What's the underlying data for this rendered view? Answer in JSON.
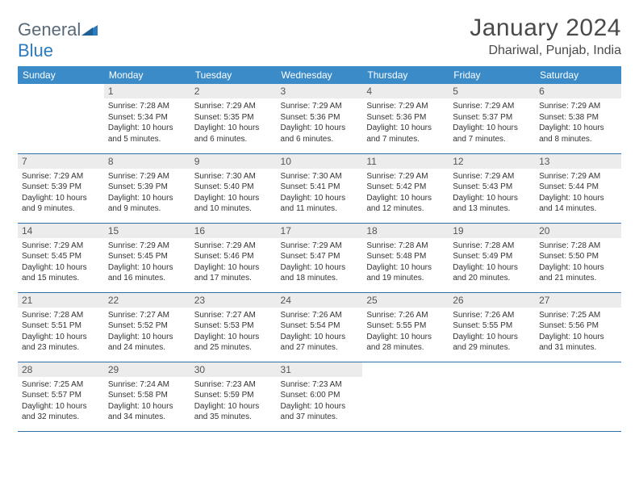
{
  "brand": {
    "part1": "General",
    "part2": "Blue"
  },
  "title": "January 2024",
  "location": "Dhariwal, Punjab, India",
  "colors": {
    "header_bg": "#3b8bc9",
    "header_text": "#ffffff",
    "daynum_bg": "#ececec",
    "row_border": "#2f6fa3",
    "logo_gray": "#5a6a78",
    "logo_blue": "#2a7bbf"
  },
  "weekdays": [
    "Sunday",
    "Monday",
    "Tuesday",
    "Wednesday",
    "Thursday",
    "Friday",
    "Saturday"
  ],
  "first_weekday_index": 1,
  "days_in_month": 31,
  "days": {
    "1": {
      "sunrise": "7:28 AM",
      "sunset": "5:34 PM",
      "daylight": "10 hours and 5 minutes."
    },
    "2": {
      "sunrise": "7:29 AM",
      "sunset": "5:35 PM",
      "daylight": "10 hours and 6 minutes."
    },
    "3": {
      "sunrise": "7:29 AM",
      "sunset": "5:36 PM",
      "daylight": "10 hours and 6 minutes."
    },
    "4": {
      "sunrise": "7:29 AM",
      "sunset": "5:36 PM",
      "daylight": "10 hours and 7 minutes."
    },
    "5": {
      "sunrise": "7:29 AM",
      "sunset": "5:37 PM",
      "daylight": "10 hours and 7 minutes."
    },
    "6": {
      "sunrise": "7:29 AM",
      "sunset": "5:38 PM",
      "daylight": "10 hours and 8 minutes."
    },
    "7": {
      "sunrise": "7:29 AM",
      "sunset": "5:39 PM",
      "daylight": "10 hours and 9 minutes."
    },
    "8": {
      "sunrise": "7:29 AM",
      "sunset": "5:39 PM",
      "daylight": "10 hours and 9 minutes."
    },
    "9": {
      "sunrise": "7:30 AM",
      "sunset": "5:40 PM",
      "daylight": "10 hours and 10 minutes."
    },
    "10": {
      "sunrise": "7:30 AM",
      "sunset": "5:41 PM",
      "daylight": "10 hours and 11 minutes."
    },
    "11": {
      "sunrise": "7:29 AM",
      "sunset": "5:42 PM",
      "daylight": "10 hours and 12 minutes."
    },
    "12": {
      "sunrise": "7:29 AM",
      "sunset": "5:43 PM",
      "daylight": "10 hours and 13 minutes."
    },
    "13": {
      "sunrise": "7:29 AM",
      "sunset": "5:44 PM",
      "daylight": "10 hours and 14 minutes."
    },
    "14": {
      "sunrise": "7:29 AM",
      "sunset": "5:45 PM",
      "daylight": "10 hours and 15 minutes."
    },
    "15": {
      "sunrise": "7:29 AM",
      "sunset": "5:45 PM",
      "daylight": "10 hours and 16 minutes."
    },
    "16": {
      "sunrise": "7:29 AM",
      "sunset": "5:46 PM",
      "daylight": "10 hours and 17 minutes."
    },
    "17": {
      "sunrise": "7:29 AM",
      "sunset": "5:47 PM",
      "daylight": "10 hours and 18 minutes."
    },
    "18": {
      "sunrise": "7:28 AM",
      "sunset": "5:48 PM",
      "daylight": "10 hours and 19 minutes."
    },
    "19": {
      "sunrise": "7:28 AM",
      "sunset": "5:49 PM",
      "daylight": "10 hours and 20 minutes."
    },
    "20": {
      "sunrise": "7:28 AM",
      "sunset": "5:50 PM",
      "daylight": "10 hours and 21 minutes."
    },
    "21": {
      "sunrise": "7:28 AM",
      "sunset": "5:51 PM",
      "daylight": "10 hours and 23 minutes."
    },
    "22": {
      "sunrise": "7:27 AM",
      "sunset": "5:52 PM",
      "daylight": "10 hours and 24 minutes."
    },
    "23": {
      "sunrise": "7:27 AM",
      "sunset": "5:53 PM",
      "daylight": "10 hours and 25 minutes."
    },
    "24": {
      "sunrise": "7:26 AM",
      "sunset": "5:54 PM",
      "daylight": "10 hours and 27 minutes."
    },
    "25": {
      "sunrise": "7:26 AM",
      "sunset": "5:55 PM",
      "daylight": "10 hours and 28 minutes."
    },
    "26": {
      "sunrise": "7:26 AM",
      "sunset": "5:55 PM",
      "daylight": "10 hours and 29 minutes."
    },
    "27": {
      "sunrise": "7:25 AM",
      "sunset": "5:56 PM",
      "daylight": "10 hours and 31 minutes."
    },
    "28": {
      "sunrise": "7:25 AM",
      "sunset": "5:57 PM",
      "daylight": "10 hours and 32 minutes."
    },
    "29": {
      "sunrise": "7:24 AM",
      "sunset": "5:58 PM",
      "daylight": "10 hours and 34 minutes."
    },
    "30": {
      "sunrise": "7:23 AM",
      "sunset": "5:59 PM",
      "daylight": "10 hours and 35 minutes."
    },
    "31": {
      "sunrise": "7:23 AM",
      "sunset": "6:00 PM",
      "daylight": "10 hours and 37 minutes."
    }
  },
  "labels": {
    "sunrise": "Sunrise:",
    "sunset": "Sunset:",
    "daylight": "Daylight:"
  }
}
